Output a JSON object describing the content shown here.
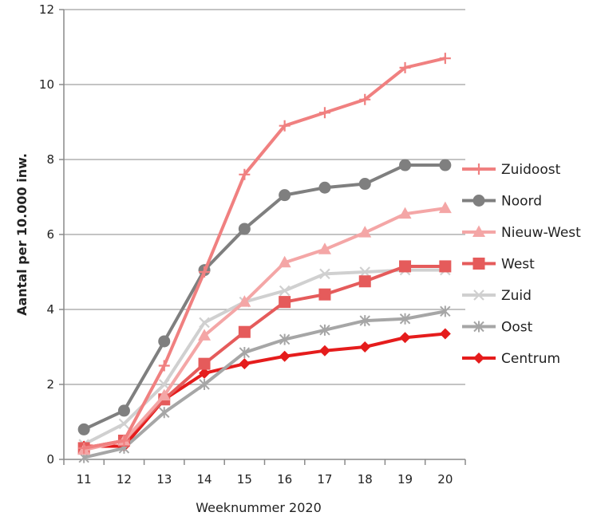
{
  "chart_data": {
    "type": "line",
    "title": "",
    "xlabel": "Weeknummer 2020",
    "ylabel": "Aantal per 10.000 inw.",
    "categories": [
      "11",
      "12",
      "13",
      "14",
      "15",
      "16",
      "17",
      "18",
      "19",
      "20"
    ],
    "yticks": [
      "0",
      "2",
      "4",
      "6",
      "8",
      "10",
      "12"
    ],
    "ylim": [
      0,
      12
    ],
    "grid": "horizontal",
    "legend": "right",
    "series": [
      {
        "name": "Zuidoost",
        "color": "#f08080",
        "marker": "plus",
        "values": [
          0.3,
          0.5,
          2.5,
          5.0,
          7.6,
          8.9,
          9.25,
          9.6,
          10.45,
          10.7
        ]
      },
      {
        "name": "Noord",
        "color": "#7f7f7f",
        "marker": "circle",
        "values": [
          0.8,
          1.3,
          3.15,
          5.05,
          6.15,
          7.05,
          7.25,
          7.35,
          7.85,
          7.85
        ]
      },
      {
        "name": "Nieuw-West",
        "color": "#f4a6a6",
        "marker": "triangle",
        "values": [
          0.25,
          0.5,
          1.7,
          3.3,
          4.2,
          5.25,
          5.6,
          6.05,
          6.55,
          6.7
        ]
      },
      {
        "name": "West",
        "color": "#e55b5b",
        "marker": "square",
        "values": [
          0.3,
          0.5,
          1.6,
          2.55,
          3.4,
          4.2,
          4.4,
          4.75,
          5.15,
          5.15
        ]
      },
      {
        "name": "Zuid",
        "color": "#d0d0d0",
        "marker": "x",
        "values": [
          0.4,
          0.95,
          2.0,
          3.65,
          4.2,
          4.5,
          4.95,
          5.0,
          5.05,
          5.05
        ]
      },
      {
        "name": "Oost",
        "color": "#a6a6a6",
        "marker": "star",
        "values": [
          0.05,
          0.3,
          1.25,
          2.0,
          2.85,
          3.2,
          3.45,
          3.7,
          3.75,
          3.95
        ]
      },
      {
        "name": "Centrum",
        "color": "#e51c1c",
        "marker": "diamond",
        "values": [
          0.35,
          0.35,
          1.6,
          2.3,
          2.55,
          2.75,
          2.9,
          3.0,
          3.25,
          3.35
        ]
      }
    ]
  }
}
